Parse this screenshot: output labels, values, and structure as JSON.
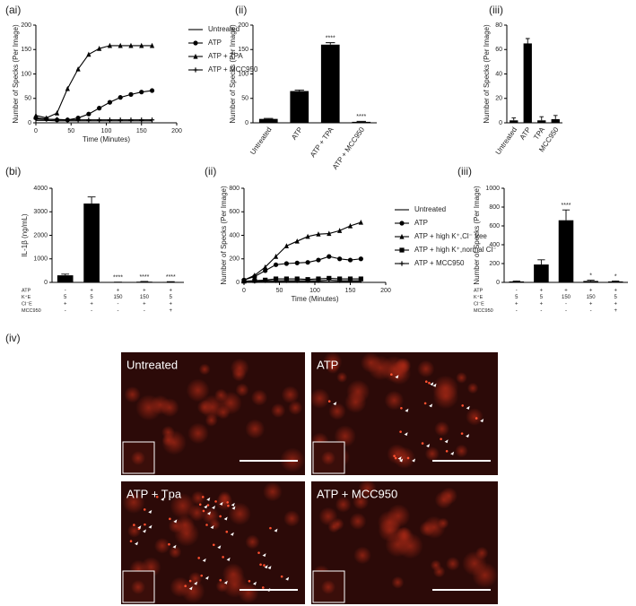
{
  "chart_data": [
    {
      "type": "line",
      "label": "(ai)",
      "xlabel": "Time (Minutes)",
      "ylabel": "Number of Specks (Per Image)",
      "x": [
        0,
        15,
        30,
        45,
        60,
        75,
        90,
        105,
        120,
        135,
        150,
        165
      ],
      "series": [
        {
          "name": "Untreated",
          "marker": "none",
          "color": "#000000",
          "values": [
            5,
            5,
            4,
            4,
            4,
            4,
            4,
            4,
            4,
            4,
            4,
            4
          ]
        },
        {
          "name": "ATP",
          "marker": "circle",
          "color": "#000000",
          "values": [
            10,
            8,
            6,
            6,
            10,
            18,
            30,
            42,
            52,
            58,
            63,
            66
          ]
        },
        {
          "name": "ATP + TPA",
          "marker": "triangle",
          "color": "#000000",
          "values": [
            15,
            10,
            20,
            70,
            110,
            140,
            152,
            158,
            158,
            158,
            158,
            158
          ]
        },
        {
          "name": "ATP + MCC950",
          "marker": "cross",
          "color": "#000000",
          "values": [
            8,
            7,
            7,
            6,
            6,
            6,
            6,
            6,
            6,
            6,
            6,
            6
          ]
        }
      ],
      "xlim": [
        0,
        200
      ],
      "xticks": [
        0,
        50,
        100,
        150,
        200
      ],
      "ylim": [
        0,
        200
      ],
      "yticks": [
        0,
        50,
        100,
        150,
        200
      ]
    },
    {
      "type": "bar",
      "label": "(ii)",
      "ylabel": "Number of Specks (Per Image)",
      "color": "#000000",
      "categories": [
        "Untreated",
        "ATP",
        "ATP + TPA",
        "ATP + MCC950"
      ],
      "values": [
        8,
        65,
        160,
        2
      ],
      "errors": [
        1,
        2,
        4,
        1
      ],
      "annotations": [
        null,
        null,
        "****",
        "****"
      ],
      "ylim": [
        0,
        200
      ],
      "yticks": [
        0,
        50,
        100,
        150,
        200
      ]
    },
    {
      "type": "bar",
      "label": "(iii)",
      "ylabel": "Number of Specks (Per Image)",
      "color": "#000000",
      "categories": [
        "Untreated",
        "ATP",
        "TPA",
        "MCC950"
      ],
      "values": [
        2,
        65,
        2,
        3
      ],
      "errors": [
        2,
        4,
        3,
        3
      ],
      "ylim": [
        0,
        80
      ],
      "yticks": [
        0,
        20,
        40,
        60,
        80
      ]
    },
    {
      "type": "bar",
      "label": "(bi)",
      "ylabel": "IL-1β (ng/mL)",
      "color": "#000000",
      "categories": [
        null,
        null,
        null,
        null,
        null
      ],
      "values": [
        300,
        3350,
        5,
        30,
        20
      ],
      "errors": [
        50,
        280,
        5,
        10,
        10
      ],
      "annotations": [
        null,
        null,
        "****",
        "****",
        "****"
      ],
      "conditions": [
        {
          "name": "ATP",
          "values": [
            "-",
            "+",
            "+",
            "+",
            "+"
          ]
        },
        {
          "name": "K⁺E",
          "values": [
            "5",
            "5",
            "150",
            "150",
            "5"
          ]
        },
        {
          "name": "Cl⁻E",
          "values": [
            "+",
            "+",
            "-",
            "+",
            "+"
          ]
        },
        {
          "name": "MCC950",
          "values": [
            "-",
            "-",
            "-",
            "-",
            "+"
          ]
        }
      ],
      "ylim": [
        0,
        4000
      ],
      "yticks": [
        0,
        1000,
        2000,
        3000,
        4000
      ]
    },
    {
      "type": "line",
      "label": "(ii)",
      "xlabel": "Time (Minutes)",
      "ylabel": "Number of Specks (Per Image)",
      "x": [
        0,
        15,
        30,
        45,
        60,
        75,
        90,
        105,
        120,
        135,
        150,
        165
      ],
      "series": [
        {
          "name": "Untreated",
          "marker": "none",
          "color": "#000000",
          "values": [
            5,
            5,
            5,
            5,
            5,
            5,
            5,
            5,
            5,
            5,
            5,
            5
          ]
        },
        {
          "name": "ATP",
          "marker": "circle",
          "color": "#000000",
          "values": [
            20,
            50,
            100,
            150,
            160,
            165,
            170,
            190,
            220,
            200,
            190,
            200
          ]
        },
        {
          "name": "ATP + high K⁺,Cl⁻ free",
          "marker": "triangle",
          "color": "#000000",
          "values": [
            20,
            60,
            130,
            220,
            310,
            350,
            390,
            410,
            415,
            440,
            480,
            510
          ]
        },
        {
          "name": "ATP + high K⁺,normal Cl⁻",
          "marker": "square",
          "color": "#000000",
          "values": [
            10,
            15,
            20,
            30,
            30,
            30,
            25,
            30,
            35,
            30,
            30,
            30
          ]
        },
        {
          "name": "ATP + MCC950",
          "marker": "cross",
          "color": "#000000",
          "values": [
            5,
            10,
            15,
            15,
            15,
            15,
            15,
            15,
            20,
            15,
            15,
            15
          ]
        }
      ],
      "xlim": [
        0,
        200
      ],
      "xticks": [
        0,
        50,
        100,
        150,
        200
      ],
      "ylim": [
        0,
        800
      ],
      "yticks": [
        0,
        200,
        400,
        600,
        800
      ]
    },
    {
      "type": "bar",
      "label": "(iii)",
      "ylabel": "Number of Specks (Per Image)",
      "color": "#000000",
      "categories": [
        null,
        null,
        null,
        null,
        null
      ],
      "values": [
        10,
        190,
        660,
        15,
        10
      ],
      "errors": [
        5,
        50,
        110,
        8,
        5
      ],
      "annotations": [
        null,
        null,
        "****",
        "*",
        "*"
      ],
      "conditions": [
        {
          "name": "ATP",
          "values": [
            "-",
            "+",
            "+",
            "+",
            "+"
          ]
        },
        {
          "name": "K⁺E",
          "values": [
            "5",
            "5",
            "150",
            "150",
            "5"
          ]
        },
        {
          "name": "Cl⁻E",
          "values": [
            "+",
            "+",
            "-",
            "+",
            "+"
          ]
        },
        {
          "name": "MCC950",
          "values": [
            "-",
            "-",
            "-",
            "-",
            "+"
          ]
        }
      ],
      "ylim": [
        0,
        1000
      ],
      "yticks": [
        0,
        200,
        400,
        600,
        800,
        1000
      ]
    }
  ],
  "micrographs": {
    "label": "(iv)",
    "panels": [
      "Untreated",
      "ATP",
      "ATP + Tpa",
      "ATP + MCC950"
    ]
  }
}
